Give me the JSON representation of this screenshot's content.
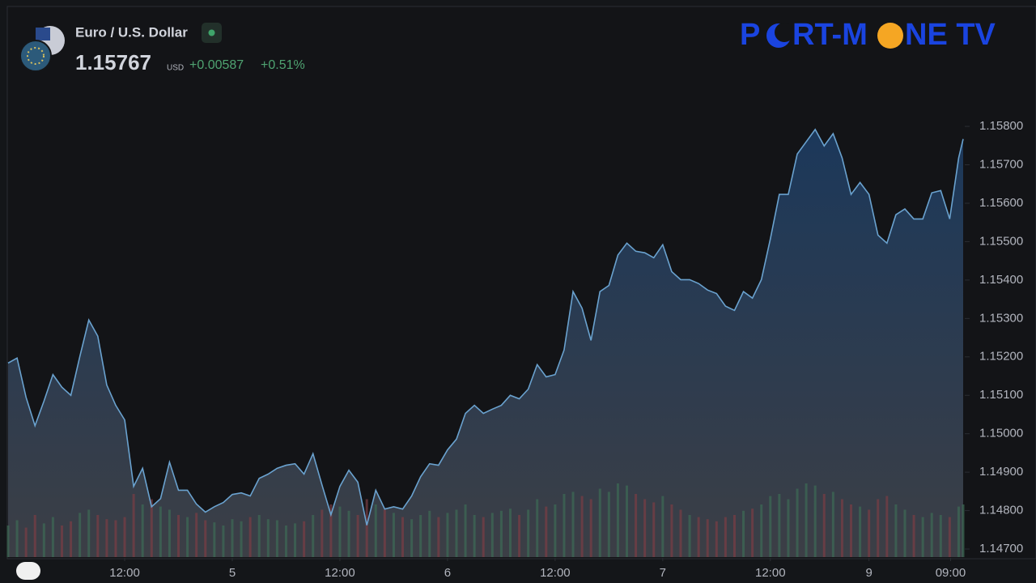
{
  "header": {
    "symbol": "Euro / U.S. Dollar",
    "price": "1.15767",
    "currency": "USD",
    "change": "+0.00587",
    "change_pct": "+0.51%"
  },
  "logo": {
    "parts": [
      "P",
      "RT-M",
      "NE TV"
    ]
  },
  "chart_data": {
    "type": "area",
    "line_color": "#6aa2cf",
    "x": [
      0,
      1,
      2,
      3,
      4,
      5,
      6,
      7,
      8,
      9,
      10,
      11,
      12,
      13,
      14,
      15,
      16,
      17,
      18,
      19,
      20,
      21,
      22,
      23,
      24,
      25,
      26,
      27,
      28,
      29,
      30,
      31,
      32,
      33,
      34,
      35,
      36,
      37,
      38,
      39,
      40,
      41,
      42,
      43,
      44,
      45,
      46,
      47,
      48,
      49,
      50,
      51,
      52,
      53,
      54,
      55,
      56,
      57,
      58,
      59,
      60,
      61,
      62,
      63,
      64,
      65,
      66,
      67,
      68,
      69,
      70,
      71,
      72,
      73,
      74,
      75,
      76,
      77,
      78,
      79,
      80,
      81,
      82,
      83,
      84,
      85,
      86,
      87,
      88,
      89,
      90,
      91,
      92,
      93,
      94,
      95,
      96,
      97,
      98,
      99,
      100,
      101,
      102,
      103,
      104,
      105,
      106,
      106.5
    ],
    "values": [
      1.15184,
      1.15197,
      1.15095,
      1.15021,
      1.15085,
      1.15154,
      1.15121,
      1.151,
      1.15201,
      1.15296,
      1.15254,
      1.15127,
      1.15074,
      1.15036,
      1.14863,
      1.1491,
      1.1481,
      1.14831,
      1.14926,
      1.14853,
      1.14853,
      1.14817,
      1.14796,
      1.1481,
      1.14821,
      1.14842,
      1.14846,
      1.14838,
      1.14884,
      1.14895,
      1.1491,
      1.14918,
      1.14922,
      1.14895,
      1.14948,
      1.14867,
      1.14789,
      1.14863,
      1.14905,
      1.14874,
      1.14762,
      1.14853,
      1.14804,
      1.1481,
      1.14804,
      1.14838,
      1.14888,
      1.14922,
      1.14918,
      1.14958,
      1.14986,
      1.15053,
      1.15074,
      1.15053,
      1.15064,
      1.15074,
      1.151,
      1.15091,
      1.15116,
      1.1518,
      1.15148,
      1.15154,
      1.15218,
      1.1537,
      1.15327,
      1.15243,
      1.1537,
      1.15386,
      1.15465,
      1.15496,
      1.15475,
      1.15471,
      1.15458,
      1.15492,
      1.15422,
      1.15401,
      1.15401,
      1.15391,
      1.15374,
      1.15365,
      1.15332,
      1.15321,
      1.1537,
      1.15353,
      1.15401,
      1.15507,
      1.15623,
      1.15623,
      1.15728,
      1.1576,
      1.15792,
      1.15749,
      1.15781,
      1.15718,
      1.15623,
      1.15654,
      1.15623,
      1.15517,
      1.15496,
      1.1557,
      1.15585,
      1.15559,
      1.15559,
      1.15627,
      1.15633,
      1.15559,
      1.15718,
      1.15767
    ],
    "volume": [
      30,
      35,
      28,
      40,
      32,
      38,
      30,
      34,
      42,
      45,
      40,
      36,
      35,
      38,
      60,
      50,
      55,
      48,
      45,
      40,
      38,
      42,
      35,
      33,
      30,
      36,
      34,
      38,
      40,
      36,
      35,
      30,
      32,
      34,
      40,
      45,
      50,
      48,
      44,
      40,
      55,
      50,
      45,
      42,
      38,
      36,
      40,
      44,
      38,
      42,
      45,
      50,
      40,
      38,
      42,
      44,
      46,
      40,
      45,
      55,
      48,
      50,
      60,
      62,
      58,
      55,
      65,
      62,
      70,
      68,
      60,
      55,
      52,
      58,
      50,
      45,
      40,
      38,
      36,
      34,
      38,
      40,
      44,
      46,
      50,
      58,
      60,
      55,
      65,
      70,
      68,
      60,
      62,
      55,
      50,
      48,
      45,
      55,
      58,
      50,
      45,
      40,
      38,
      42,
      40,
      38,
      48,
      50
    ],
    "xlim": [
      0,
      106.5
    ],
    "ylim": [
      1.14679,
      1.15876
    ],
    "xticks": [
      {
        "value": 13,
        "label": "12:00"
      },
      {
        "value": 25,
        "label": "5"
      },
      {
        "value": 37,
        "label": "12:00"
      },
      {
        "value": 49,
        "label": "6"
      },
      {
        "value": 61,
        "label": "12:00"
      },
      {
        "value": 73,
        "label": "7"
      },
      {
        "value": 85,
        "label": "12:00"
      },
      {
        "value": 96,
        "label": "9"
      },
      {
        "value": 105.1,
        "label": "09:00"
      }
    ],
    "yticks": [
      {
        "value": 1.147,
        "label": "1.14700"
      },
      {
        "value": 1.148,
        "label": "1.14800"
      },
      {
        "value": 1.149,
        "label": "1.14900"
      },
      {
        "value": 1.15,
        "label": "1.15000"
      },
      {
        "value": 1.151,
        "label": "1.15100"
      },
      {
        "value": 1.152,
        "label": "1.15200"
      },
      {
        "value": 1.153,
        "label": "1.15300"
      },
      {
        "value": 1.154,
        "label": "1.15400"
      },
      {
        "value": 1.155,
        "label": "1.15500"
      },
      {
        "value": 1.156,
        "label": "1.15600"
      },
      {
        "value": 1.157,
        "label": "1.15700"
      },
      {
        "value": 1.158,
        "label": "1.15800"
      }
    ]
  }
}
